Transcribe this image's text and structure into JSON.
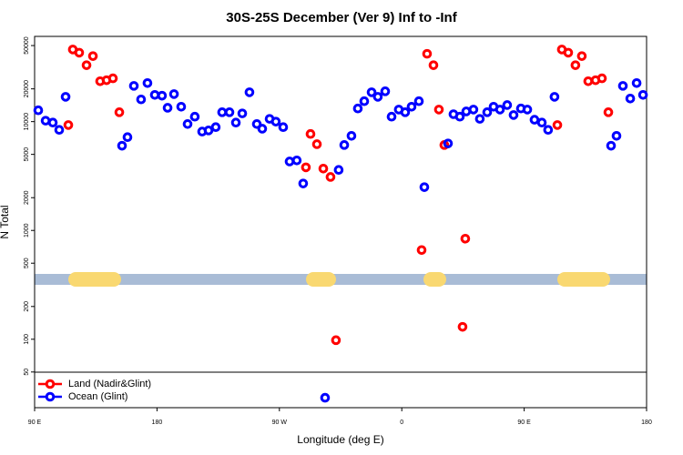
{
  "chart_data": {
    "type": "scatter",
    "title": "30S-25S December (Ver 9)   Inf to -Inf",
    "x_label": "Longitude (deg E)",
    "y_label": "N Total",
    "y_scale": "log",
    "xlim": [
      90,
      540
    ],
    "ylim": [
      23.5,
      60700
    ],
    "xticks": [
      {
        "value": 90,
        "label": "90 E"
      },
      {
        "value": 180,
        "label": "180"
      },
      {
        "value": 270,
        "label": "90 W"
      },
      {
        "value": 360,
        "label": "0"
      },
      {
        "value": 450,
        "label": "90 E"
      },
      {
        "value": 540,
        "label": "180"
      }
    ],
    "yticks": [
      50,
      100,
      200,
      500,
      1000,
      2000,
      5000,
      10000,
      20000,
      50000
    ],
    "legend": "bottom-left",
    "series": [
      {
        "name": "Land (Nadir&Glint)",
        "color": "#ff0000",
        "x": [
          114.8,
          118.1,
          122.8,
          128.2,
          132.9,
          138.2,
          142.9,
          147.6,
          152.3,
          289.5,
          292.9,
          297.6,
          302.3,
          307.6,
          311.6,
          374.6,
          378.6,
          383.3,
          387.3,
          391.3,
          404.7,
          406.7,
          474.4,
          477.7,
          482.4,
          487.7,
          492.4,
          497.1,
          502.5,
          507.2,
          511.9
        ],
        "values": [
          9300,
          46000,
          43000,
          33000,
          40000,
          23500,
          24000,
          25000,
          12200,
          3800,
          7700,
          6200,
          3700,
          3100,
          98,
          660,
          42000,
          33000,
          12900,
          6100,
          130,
          840,
          9300,
          46000,
          43000,
          33000,
          40000,
          23500,
          24000,
          25000,
          12200
        ]
      },
      {
        "name": "Ocean (Glint)",
        "color": "#0000ff",
        "x": [
          92.7,
          98.1,
          103.4,
          108.1,
          112.8,
          154.3,
          158.3,
          163.0,
          168.3,
          173.0,
          178.4,
          183.7,
          187.8,
          192.5,
          197.8,
          202.5,
          207.8,
          213.2,
          217.9,
          223.2,
          227.9,
          233.3,
          238.0,
          242.7,
          248.0,
          253.4,
          257.4,
          262.8,
          267.4,
          272.8,
          277.5,
          282.8,
          287.5,
          303.6,
          313.6,
          317.7,
          323.0,
          327.7,
          332.4,
          337.8,
          342.4,
          347.8,
          352.5,
          357.8,
          362.5,
          367.2,
          372.6,
          376.6,
          394.0,
          398.0,
          402.7,
          407.4,
          412.7,
          417.4,
          422.8,
          427.5,
          432.2,
          437.5,
          442.2,
          447.6,
          452.3,
          457.6,
          463.0,
          467.6,
          472.3,
          513.9,
          517.9,
          522.6,
          528.0,
          532.7,
          537.4
        ],
        "values": [
          12700,
          10200,
          9800,
          8400,
          16900,
          6000,
          7200,
          21300,
          16000,
          22600,
          17600,
          17300,
          13400,
          17900,
          13700,
          9500,
          11100,
          8100,
          8300,
          8900,
          12200,
          12200,
          9800,
          11900,
          18600,
          9500,
          8600,
          10600,
          10000,
          8900,
          4300,
          4400,
          2700,
          29,
          3600,
          6100,
          7400,
          13200,
          15400,
          18600,
          16900,
          19000,
          11100,
          12900,
          12200,
          13700,
          15400,
          2500,
          6300,
          11700,
          11100,
          12400,
          12900,
          10600,
          12200,
          13700,
          12900,
          14200,
          11500,
          13200,
          12900,
          10400,
          9800,
          8400,
          16900,
          6000,
          7400,
          21300,
          16300,
          22600,
          17600
        ]
      }
    ]
  }
}
